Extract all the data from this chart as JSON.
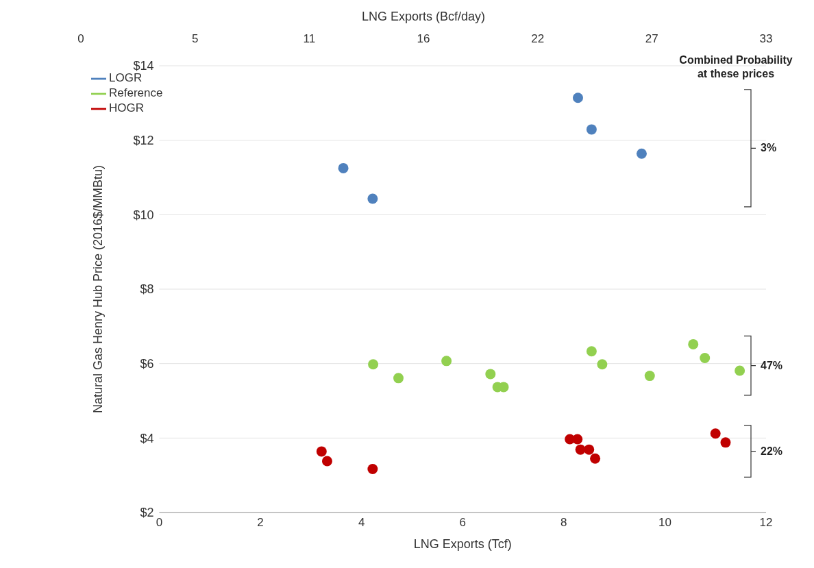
{
  "chart_data": {
    "type": "scatter",
    "xlabel": "LNG Exports (Tcf)",
    "x2label": "LNG Exports (Bcf/day)",
    "ylabel": "Natural Gas Henry Hub Price (2016$/MMBtu)",
    "xlim": [
      0,
      12
    ],
    "xticks": [
      0,
      2,
      4,
      6,
      8,
      10,
      12
    ],
    "x2lim": [
      0,
      32.88
    ],
    "x2ticks": [
      0,
      {
        "value": 5.48,
        "label": "5"
      },
      {
        "value": 10.96,
        "label": "11"
      },
      {
        "value": 16.44,
        "label": "16"
      },
      {
        "value": 21.92,
        "label": "22"
      },
      {
        "value": 27.4,
        "label": "27"
      },
      {
        "value": 32.88,
        "label": "33"
      }
    ],
    "ylim": [
      2,
      14
    ],
    "yticks": [
      {
        "value": 2,
        "label": "$2"
      },
      {
        "value": 4,
        "label": "$4"
      },
      {
        "value": 6,
        "label": "$6"
      },
      {
        "value": 8,
        "label": "$8"
      },
      {
        "value": 10,
        "label": "$10"
      },
      {
        "value": 12,
        "label": "$12"
      },
      {
        "value": 14,
        "label": "$14"
      }
    ],
    "grid": "y",
    "legend": "top left",
    "marker": "circle",
    "series": [
      {
        "name": "LOGR",
        "color": "#4f81bd",
        "x": [
          3.64,
          4.22,
          8.28,
          8.55,
          9.54
        ],
        "values": [
          11.25,
          10.43,
          13.14,
          12.29,
          11.64
        ]
      },
      {
        "name": "Reference",
        "color": "#92d050",
        "x": [
          4.23,
          4.73,
          5.68,
          6.55,
          6.69,
          6.81,
          8.55,
          8.76,
          9.7,
          10.56,
          10.79,
          11.48
        ],
        "values": [
          5.98,
          5.61,
          6.07,
          5.72,
          5.37,
          5.37,
          6.33,
          5.98,
          5.67,
          6.52,
          6.15,
          5.81
        ]
      },
      {
        "name": "HOGR",
        "color": "#c00000",
        "x": [
          3.21,
          3.32,
          4.22,
          8.12,
          8.27,
          8.33,
          8.5,
          8.62,
          11.0,
          11.2
        ],
        "values": [
          3.64,
          3.38,
          3.17,
          3.97,
          3.97,
          3.69,
          3.69,
          3.45,
          4.12,
          3.88
        ]
      }
    ],
    "annotations": [
      "Combined Probability at these prices",
      "3%",
      "47%",
      "22%"
    ]
  }
}
